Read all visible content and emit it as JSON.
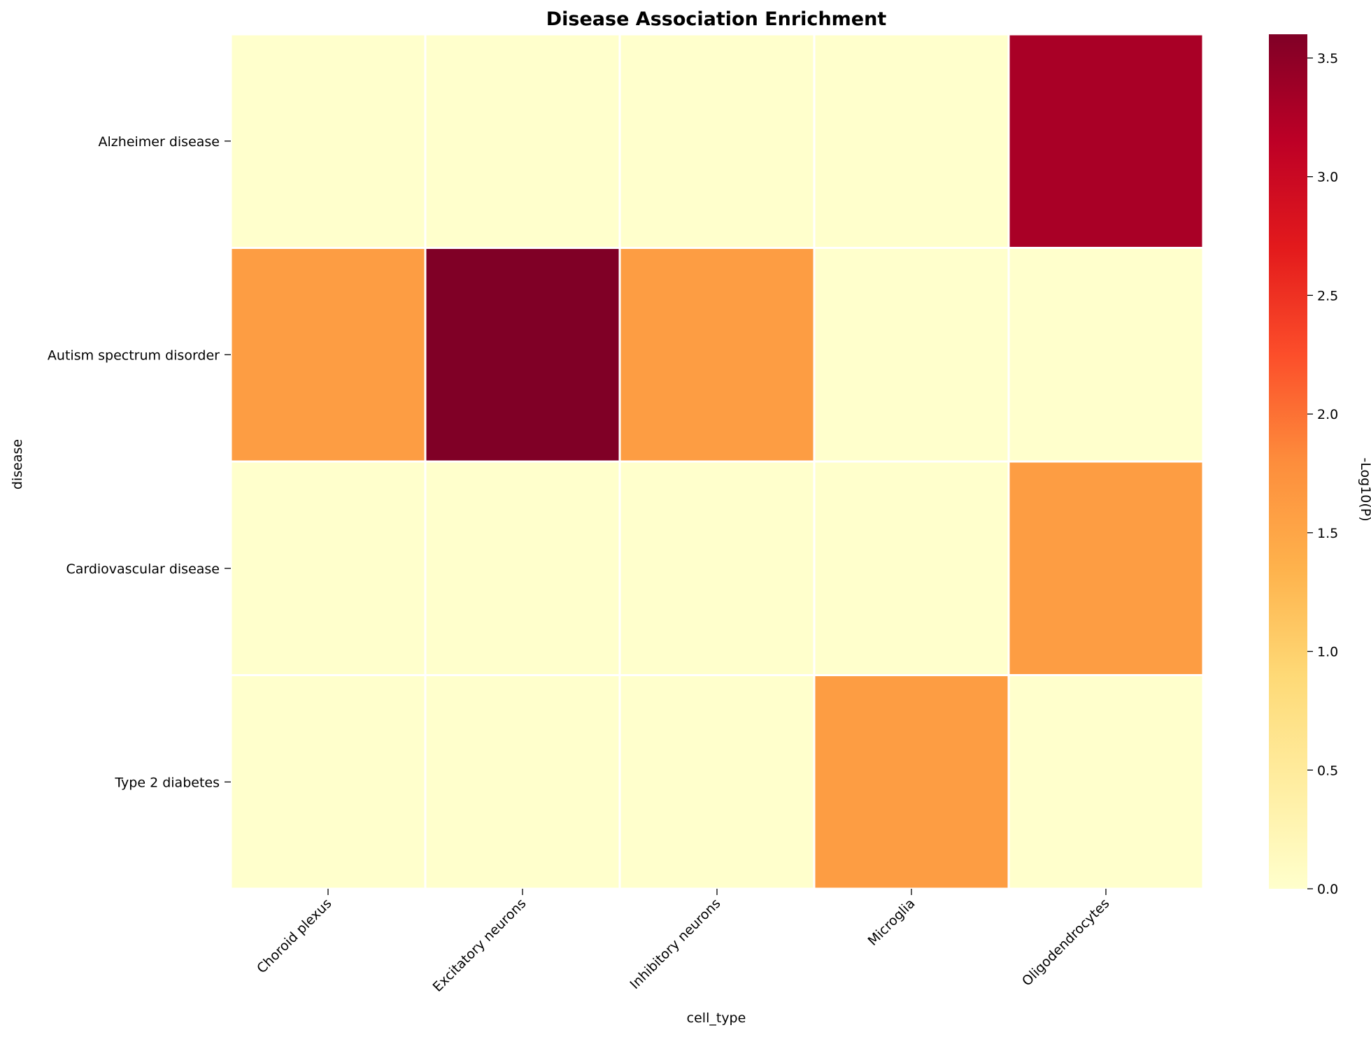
{
  "chart_data": {
    "type": "heatmap",
    "title": "Disease Association Enrichment",
    "xlabel": "cell_type",
    "ylabel": "disease",
    "x_categories": [
      "Choroid plexus",
      "Excitatory neurons",
      "Inhibitory neurons",
      "Microglia",
      "Oligodendrocytes"
    ],
    "y_categories": [
      "Alzheimer disease",
      "Autism spectrum disorder",
      "Cardiovascular disease",
      "Type 2 diabetes"
    ],
    "values": [
      [
        0.0,
        0.0,
        0.0,
        0.0,
        3.3
      ],
      [
        1.6,
        3.6,
        1.6,
        0.0,
        0.0
      ],
      [
        0.0,
        0.0,
        0.0,
        0.0,
        1.6
      ],
      [
        0.0,
        0.0,
        0.0,
        1.6,
        0.0
      ]
    ],
    "colorbar": {
      "label": "-Log10(P)",
      "range": [
        0.0,
        3.6
      ],
      "ticks": [
        "0.0",
        "0.5",
        "1.0",
        "1.5",
        "2.0",
        "2.5",
        "3.0",
        "3.5"
      ],
      "colormap": "YlOrRd"
    },
    "cell_border_color": "#ffffff",
    "grid": false
  }
}
